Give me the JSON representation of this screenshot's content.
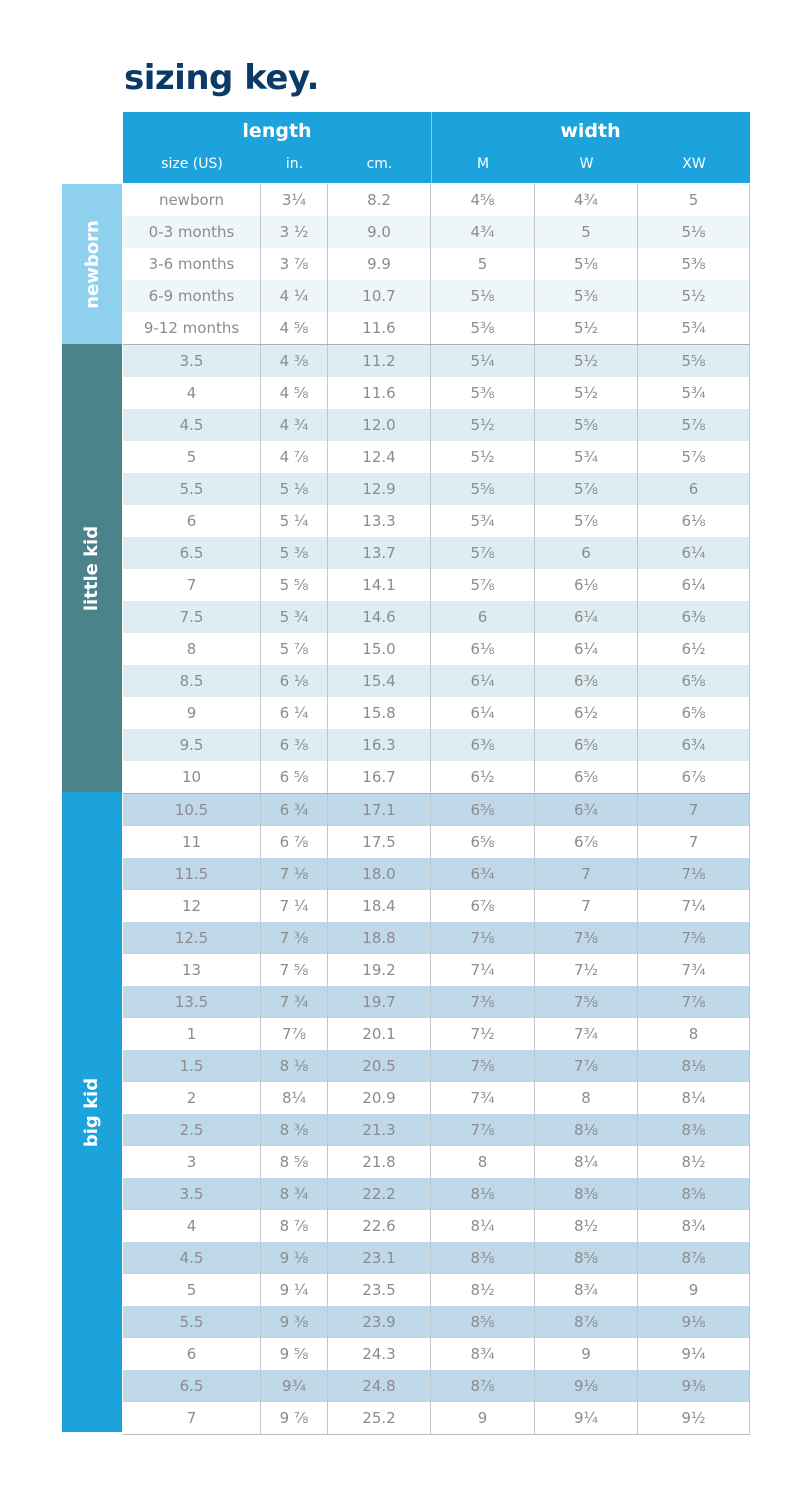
{
  "title": "sizing key.",
  "header": {
    "length_label": "length",
    "width_label": "width",
    "columns": [
      "size (US)",
      "in.",
      "cm.",
      "M",
      "W",
      "XW"
    ]
  },
  "colors": {
    "header": "#1ca3dc",
    "title": "#0b3a66",
    "newborn": "#8fd0ef",
    "little_kid": "#4a838a",
    "big_kid": "#1ca3dc",
    "newborn_stripe": "#eef6fa",
    "little_kid_stripe": "#deedf1",
    "big_kid_stripe": "#bfd9e9"
  },
  "groups": [
    {
      "label": "newborn",
      "color": "#8fd0ef",
      "stripe": "#eef6fa",
      "stripe_start": 1,
      "rows": [
        [
          "newborn",
          "3¼",
          "8.2",
          "4⅝",
          "4¾",
          "5"
        ],
        [
          "0-3 months",
          "3 ½",
          "9.0",
          "4¾",
          "5",
          "5⅛"
        ],
        [
          "3-6 months",
          "3 ⅞",
          "9.9",
          "5",
          "5⅛",
          "5⅜"
        ],
        [
          "6-9 months",
          "4 ¼",
          "10.7",
          "5⅛",
          "5⅜",
          "5½"
        ],
        [
          "9-12 months",
          "4 ⅝",
          "11.6",
          "5⅜",
          "5½",
          "5¾"
        ]
      ]
    },
    {
      "label": "little kid",
      "color": "#4a838a",
      "stripe": "#deedf1",
      "stripe_start": 0,
      "rows": [
        [
          "3.5",
          "4 ⅜",
          "11.2",
          "5¼",
          "5½",
          "5⅝"
        ],
        [
          "4",
          "4 ⅝",
          "11.6",
          "5⅜",
          "5½",
          "5¾"
        ],
        [
          "4.5",
          "4 ¾",
          "12.0",
          "5½",
          "5⅝",
          "5⅞"
        ],
        [
          "5",
          "4 ⅞",
          "12.4",
          "5½",
          "5¾",
          "5⅞"
        ],
        [
          "5.5",
          "5 ⅛",
          "12.9",
          "5⅝",
          "5⅞",
          "6"
        ],
        [
          "6",
          "5 ¼",
          "13.3",
          "5¾",
          "5⅞",
          "6⅛"
        ],
        [
          "6.5",
          "5 ⅜",
          "13.7",
          "5⅞",
          "6",
          "6¼"
        ],
        [
          "7",
          "5 ⅝",
          "14.1",
          "5⅞",
          "6⅛",
          "6¼"
        ],
        [
          "7.5",
          "5 ¾",
          "14.6",
          "6",
          "6¼",
          "6⅜"
        ],
        [
          "8",
          "5 ⅞",
          "15.0",
          "6⅛",
          "6¼",
          "6½"
        ],
        [
          "8.5",
          "6 ⅛",
          "15.4",
          "6¼",
          "6⅜",
          "6⅝"
        ],
        [
          "9",
          "6 ¼",
          "15.8",
          "6¼",
          "6½",
          "6⅝"
        ],
        [
          "9.5",
          "6 ⅜",
          "16.3",
          "6⅜",
          "6⅝",
          "6¾"
        ],
        [
          "10",
          "6 ⅝",
          "16.7",
          "6½",
          "6⅝",
          "6⅞"
        ]
      ]
    },
    {
      "label": "big kid",
      "color": "#1ca3dc",
      "stripe": "#bfd9e9",
      "stripe_start": 0,
      "rows": [
        [
          "10.5",
          "6 ¾",
          "17.1",
          "6⅝",
          "6¾",
          "7"
        ],
        [
          "11",
          "6 ⅞",
          "17.5",
          "6⅝",
          "6⅞",
          "7"
        ],
        [
          "11.5",
          "7 ⅛",
          "18.0",
          "6¾",
          "7",
          "7⅛"
        ],
        [
          "12",
          "7 ¼",
          "18.4",
          "6⅞",
          "7",
          "7¼"
        ],
        [
          "12.5",
          "7 ⅜",
          "18.8",
          "7⅛",
          "7⅜",
          "7⅝"
        ],
        [
          "13",
          "7 ⅝",
          "19.2",
          "7¼",
          "7½",
          "7¾"
        ],
        [
          "13.5",
          "7 ¾",
          "19.7",
          "7⅜",
          "7⅝",
          "7⅞"
        ],
        [
          "1",
          "7⅞",
          "20.1",
          "7½",
          "7¾",
          "8"
        ],
        [
          "1.5",
          "8 ⅛",
          "20.5",
          "7⅝",
          "7⅞",
          "8⅛"
        ],
        [
          "2",
          "8¼",
          "20.9",
          "7¾",
          "8",
          "8¼"
        ],
        [
          "2.5",
          "8 ⅜",
          "21.3",
          "7⅞",
          "8⅛",
          "8⅜"
        ],
        [
          "3",
          "8 ⅝",
          "21.8",
          "8",
          "8¼",
          "8½"
        ],
        [
          "3.5",
          "8 ¾",
          "22.2",
          "8⅛",
          "8⅜",
          "8⅝"
        ],
        [
          "4",
          "8 ⅞",
          "22.6",
          "8¼",
          "8½",
          "8¾"
        ],
        [
          "4.5",
          "9 ⅛",
          "23.1",
          "8⅜",
          "8⅝",
          "8⅞"
        ],
        [
          "5",
          "9 ¼",
          "23.5",
          "8½",
          "8¾",
          "9"
        ],
        [
          "5.5",
          "9 ⅜",
          "23.9",
          "8⅝",
          "8⅞",
          "9⅛"
        ],
        [
          "6",
          "9 ⅝",
          "24.3",
          "8¾",
          "9",
          "9¼"
        ],
        [
          "6.5",
          "9¾",
          "24.8",
          "8⅞",
          "9⅛",
          "9⅜"
        ],
        [
          "7",
          "9 ⅞",
          "25.2",
          "9",
          "9¼",
          "9½"
        ]
      ]
    }
  ]
}
